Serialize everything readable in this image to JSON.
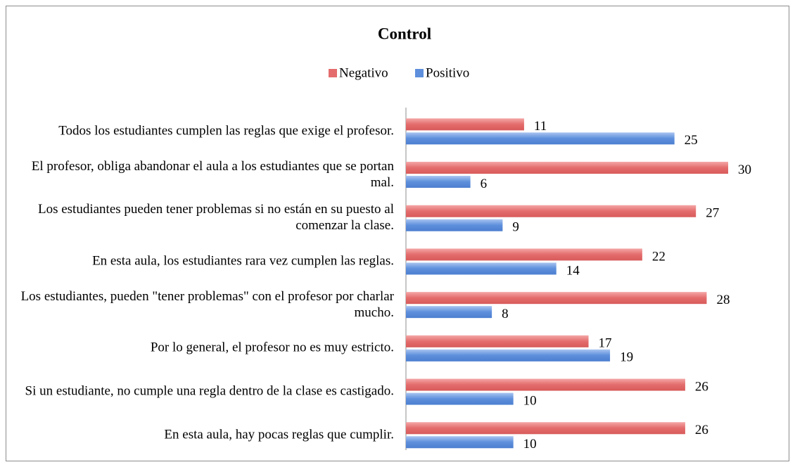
{
  "chart_data": {
    "type": "bar",
    "orientation": "horizontal",
    "title": "Control",
    "categories": [
      "Todos los estudiantes cumplen las reglas que exige el profesor.",
      "El profesor, obliga abandonar el aula a los estudiantes que se portan mal.",
      "Los estudiantes pueden tener problemas si no están en su puesto al comenzar la clase.",
      "En esta aula, los estudiantes rara vez cumplen las reglas.",
      "Los estudiantes, pueden \"tener problemas\" con el profesor por charlar mucho.",
      "Por lo general, el profesor no es muy estricto.",
      "Si un estudiante, no cumple una regla dentro de la clase es castigado.",
      "En esta aula, hay pocas reglas que cumplir."
    ],
    "series": [
      {
        "name": "Negativo",
        "color": "#e46c6c",
        "values": [
          11,
          30,
          27,
          22,
          28,
          17,
          26,
          26
        ]
      },
      {
        "name": "Positivo",
        "color": "#5d8fdc",
        "values": [
          25,
          6,
          9,
          14,
          8,
          19,
          10,
          10
        ]
      }
    ],
    "legend": "top"
  }
}
